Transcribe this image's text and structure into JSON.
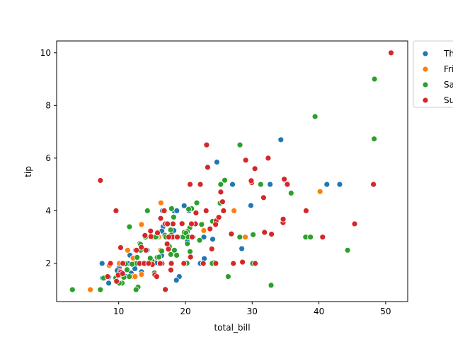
{
  "chart_data": {
    "type": "scatter",
    "title": "",
    "xlabel": "total_bill",
    "ylabel": "tip",
    "xlim": [
      0.7,
      53.3
    ],
    "ylim": [
      0.55,
      10.45
    ],
    "xticks": [
      10,
      20,
      30,
      40,
      50
    ],
    "yticks": [
      2,
      4,
      6,
      8,
      10
    ],
    "grid": false,
    "legend_placement": "outside-right",
    "series": [
      {
        "name": "Thur",
        "color": "#1f77b4",
        "points": [
          [
            27.2,
            4.0
          ],
          [
            22.76,
            3.0
          ],
          [
            17.29,
            2.71
          ],
          [
            19.44,
            3.0
          ],
          [
            16.66,
            3.4
          ],
          [
            10.07,
            1.83
          ],
          [
            32.68,
            5.0
          ],
          [
            15.98,
            2.03
          ],
          [
            34.83,
            5.17
          ],
          [
            13.03,
            2.0
          ],
          [
            18.28,
            4.0
          ],
          [
            24.71,
            5.85
          ],
          [
            21.16,
            3.0
          ],
          [
            28.97,
            3.0
          ],
          [
            22.49,
            3.5
          ],
          [
            5.75,
            1.0
          ],
          [
            16.32,
            4.3
          ],
          [
            22.75,
            3.25
          ],
          [
            40.17,
            4.73
          ],
          [
            27.28,
            4.0
          ],
          [
            12.03,
            1.5
          ],
          [
            21.01,
            3.0
          ],
          [
            12.46,
            1.5
          ],
          [
            11.35,
            2.5
          ],
          [
            15.38,
            3.0
          ],
          [
            44.3,
            2.5
          ],
          [
            22.42,
            3.48
          ],
          [
            20.92,
            4.08
          ],
          [
            15.36,
            1.64
          ],
          [
            20.49,
            4.06
          ],
          [
            25.21,
            4.29
          ],
          [
            18.24,
            3.76
          ],
          [
            14.31,
            4.0
          ],
          [
            14.0,
            3.0
          ],
          [
            7.25,
            1.0
          ],
          [
            38.07,
            4.0
          ],
          [
            23.95,
            2.55
          ],
          [
            25.71,
            4.0
          ],
          [
            17.31,
            3.5
          ],
          [
            29.93,
            5.07
          ],
          [
            10.65,
            1.5
          ],
          [
            12.43,
            1.8
          ],
          [
            24.08,
            2.92
          ],
          [
            11.69,
            2.31
          ],
          [
            13.42,
            1.68
          ],
          [
            14.26,
            2.5
          ],
          [
            15.95,
            2.0
          ],
          [
            12.48,
            2.52
          ],
          [
            29.8,
            4.2
          ],
          [
            8.52,
            1.48
          ],
          [
            14.52,
            2.0
          ],
          [
            11.38,
            2.0
          ],
          [
            22.82,
            2.18
          ],
          [
            19.08,
            1.5
          ],
          [
            20.27,
            2.83
          ],
          [
            11.17,
            1.5
          ],
          [
            12.26,
            2.0
          ],
          [
            18.26,
            3.25
          ],
          [
            8.51,
            1.25
          ],
          [
            10.33,
            2.0
          ],
          [
            14.15,
            2.0
          ],
          [
            16.0,
            2.0
          ],
          [
            13.16,
            2.75
          ],
          [
            17.47,
            3.5
          ],
          [
            34.3,
            6.7
          ],
          [
            41.19,
            5.0
          ],
          [
            27.05,
            5.0
          ],
          [
            16.43,
            2.3
          ],
          [
            8.35,
            1.5
          ],
          [
            18.64,
            1.36
          ],
          [
            11.87,
            1.63
          ],
          [
            9.78,
            1.73
          ],
          [
            7.51,
            2.0
          ],
          [
            19.81,
            4.19
          ],
          [
            28.44,
            2.56
          ],
          [
            15.48,
            2.02
          ],
          [
            16.58,
            4.0
          ],
          [
            7.56,
            1.44
          ],
          [
            10.34,
            2.0
          ],
          [
            43.11,
            5.0
          ],
          [
            13.0,
            2.0
          ],
          [
            13.51,
            2.0
          ],
          [
            18.71,
            4.0
          ],
          [
            12.74,
            2.01
          ],
          [
            13.0,
            2.0
          ],
          [
            16.4,
            2.5
          ],
          [
            20.53,
            4.0
          ],
          [
            16.47,
            3.23
          ],
          [
            18.78,
            3.0
          ],
          [
            12.6,
            1.0
          ],
          [
            15.69,
            1.5
          ],
          [
            10.09,
            2.0
          ],
          [
            11.61,
            3.39
          ],
          [
            21.7,
            4.3
          ],
          [
            24.27,
            2.03
          ],
          [
            22.23,
            2.0
          ],
          [
            32.4,
            6.0
          ],
          [
            28.15,
            3.0
          ],
          [
            11.59,
            1.5
          ],
          [
            7.74,
            1.44
          ],
          [
            30.14,
            3.09
          ],
          [
            12.16,
            2.2
          ],
          [
            13.42,
            3.48
          ],
          [
            8.58,
            1.92
          ]
        ]
      },
      {
        "name": "Fri",
        "color": "#ff7f0e",
        "points": [
          [
            28.97,
            3.0
          ],
          [
            22.49,
            3.5
          ],
          [
            5.75,
            1.0
          ],
          [
            16.32,
            4.3
          ],
          [
            22.75,
            3.25
          ],
          [
            40.17,
            4.73
          ],
          [
            27.28,
            4.0
          ],
          [
            12.03,
            1.5
          ],
          [
            21.01,
            3.0
          ],
          [
            12.46,
            1.5
          ],
          [
            11.35,
            2.5
          ],
          [
            15.38,
            3.0
          ],
          [
            12.16,
            2.2
          ],
          [
            13.42,
            3.48
          ],
          [
            8.58,
            1.92
          ],
          [
            15.98,
            3.0
          ],
          [
            13.42,
            1.58
          ],
          [
            16.27,
            2.5
          ],
          [
            10.09,
            2.0
          ]
        ]
      },
      {
        "name": "Sat",
        "color": "#2ca02c",
        "points": [
          [
            20.65,
            3.35
          ],
          [
            17.92,
            4.08
          ],
          [
            20.29,
            2.75
          ],
          [
            15.77,
            2.23
          ],
          [
            39.42,
            7.58
          ],
          [
            19.82,
            3.18
          ],
          [
            17.81,
            2.34
          ],
          [
            13.37,
            2.0
          ],
          [
            12.69,
            2.0
          ],
          [
            21.7,
            4.3
          ],
          [
            19.65,
            3.0
          ],
          [
            9.55,
            1.45
          ],
          [
            18.35,
            2.5
          ],
          [
            15.06,
            3.0
          ],
          [
            20.69,
            2.45
          ],
          [
            17.78,
            3.27
          ],
          [
            24.06,
            3.6
          ],
          [
            16.31,
            2.0
          ],
          [
            16.93,
            3.07
          ],
          [
            18.69,
            2.31
          ],
          [
            31.27,
            5.0
          ],
          [
            16.04,
            2.24
          ],
          [
            38.01,
            3.0
          ],
          [
            26.41,
            1.5
          ],
          [
            11.24,
            1.76
          ],
          [
            48.27,
            6.73
          ],
          [
            20.29,
            3.21
          ],
          [
            13.81,
            2.0
          ],
          [
            11.02,
            1.98
          ],
          [
            18.29,
            3.76
          ],
          [
            17.59,
            2.64
          ],
          [
            20.08,
            3.15
          ],
          [
            16.45,
            2.47
          ],
          [
            3.07,
            1.0
          ],
          [
            20.23,
            2.01
          ],
          [
            15.01,
            2.09
          ],
          [
            12.02,
            1.97
          ],
          [
            17.07,
            3.0
          ],
          [
            26.86,
            3.14
          ],
          [
            25.28,
            5.0
          ],
          [
            14.73,
            2.2
          ],
          [
            10.51,
            1.25
          ],
          [
            17.92,
            3.08
          ],
          [
            44.3,
            2.5
          ],
          [
            22.42,
            3.48
          ],
          [
            20.92,
            4.08
          ],
          [
            15.36,
            1.64
          ],
          [
            20.49,
            4.06
          ],
          [
            25.21,
            4.29
          ],
          [
            18.24,
            3.76
          ],
          [
            14.31,
            4.0
          ],
          [
            14.0,
            3.0
          ],
          [
            7.25,
            1.0
          ],
          [
            38.73,
            3.0
          ],
          [
            24.27,
            2.03
          ],
          [
            12.76,
            2.23
          ],
          [
            30.06,
            2.0
          ],
          [
            25.89,
            5.16
          ],
          [
            48.33,
            9.0
          ],
          [
            13.27,
            2.5
          ],
          [
            28.17,
            6.5
          ],
          [
            12.9,
            1.1
          ],
          [
            28.15,
            3.0
          ],
          [
            11.59,
            1.5
          ],
          [
            7.74,
            1.44
          ],
          [
            30.14,
            3.09
          ],
          [
            20.45,
            3.0
          ],
          [
            13.28,
            2.72
          ],
          [
            22.12,
            2.88
          ],
          [
            24.01,
            2.0
          ],
          [
            15.69,
            3.0
          ],
          [
            11.61,
            3.39
          ],
          [
            10.77,
            1.47
          ],
          [
            15.53,
            3.0
          ],
          [
            10.07,
            1.25
          ],
          [
            12.6,
            1.0
          ],
          [
            32.83,
            1.17
          ],
          [
            35.83,
            4.67
          ],
          [
            29.03,
            5.92
          ],
          [
            27.18,
            2.0
          ],
          [
            22.67,
            2.0
          ],
          [
            17.82,
            1.75
          ],
          [
            18.78,
            3.0
          ],
          [
            50.81,
            10.0
          ],
          [
            20.76,
            2.24
          ],
          [
            16.97,
            3.5
          ]
        ]
      },
      {
        "name": "Sun",
        "color": "#d62728",
        "points": [
          [
            16.99,
            1.01
          ],
          [
            10.34,
            1.66
          ],
          [
            21.01,
            3.5
          ],
          [
            23.68,
            3.31
          ],
          [
            24.59,
            3.61
          ],
          [
            25.29,
            4.71
          ],
          [
            8.77,
            2.0
          ],
          [
            26.88,
            3.12
          ],
          [
            15.04,
            1.96
          ],
          [
            14.78,
            3.23
          ],
          [
            10.27,
            1.71
          ],
          [
            35.26,
            5.0
          ],
          [
            15.42,
            1.57
          ],
          [
            18.43,
            3.0
          ],
          [
            14.83,
            3.02
          ],
          [
            21.58,
            3.92
          ],
          [
            10.33,
            1.67
          ],
          [
            16.29,
            3.71
          ],
          [
            16.97,
            3.5
          ],
          [
            17.46,
            2.54
          ],
          [
            13.94,
            3.06
          ],
          [
            9.68,
            1.32
          ],
          [
            30.4,
            5.6
          ],
          [
            18.29,
            3.0
          ],
          [
            22.23,
            5.0
          ],
          [
            32.4,
            6.0
          ],
          [
            28.55,
            2.05
          ],
          [
            18.04,
            3.0
          ],
          [
            12.54,
            2.5
          ],
          [
            10.29,
            2.6
          ],
          [
            34.81,
            5.2
          ],
          [
            9.94,
            1.56
          ],
          [
            25.56,
            4.34
          ],
          [
            19.49,
            3.51
          ],
          [
            38.07,
            4.0
          ],
          [
            23.95,
            2.55
          ],
          [
            25.71,
            4.0
          ],
          [
            17.31,
            3.5
          ],
          [
            29.93,
            5.07
          ],
          [
            14.07,
            2.5
          ],
          [
            13.13,
            2.0
          ],
          [
            17.26,
            2.74
          ],
          [
            24.55,
            2.0
          ],
          [
            19.77,
            2.0
          ],
          [
            29.85,
            5.14
          ],
          [
            48.17,
            5.0
          ],
          [
            25.0,
            3.75
          ],
          [
            13.39,
            2.61
          ],
          [
            16.49,
            2.0
          ],
          [
            21.5,
            3.5
          ],
          [
            12.66,
            2.5
          ],
          [
            16.21,
            2.0
          ],
          [
            13.81,
            2.0
          ],
          [
            17.51,
            3.0
          ],
          [
            24.52,
            3.48
          ],
          [
            20.76,
            2.24
          ],
          [
            31.71,
            4.5
          ],
          [
            10.59,
            1.61
          ],
          [
            10.63,
            2.0
          ],
          [
            50.81,
            10.0
          ],
          [
            15.81,
            3.16
          ],
          [
            7.25,
            5.15
          ],
          [
            31.85,
            3.18
          ],
          [
            16.82,
            4.0
          ],
          [
            32.9,
            3.11
          ],
          [
            17.89,
            2.0
          ],
          [
            14.48,
            2.0
          ],
          [
            34.63,
            3.55
          ],
          [
            34.65,
            3.68
          ],
          [
            23.33,
            5.65
          ],
          [
            45.35,
            3.5
          ],
          [
            23.17,
            6.5
          ],
          [
            40.55,
            3.0
          ],
          [
            20.69,
            5.0
          ],
          [
            20.9,
            3.5
          ],
          [
            30.46,
            2.0
          ],
          [
            18.15,
            3.5
          ],
          [
            23.1,
            4.0
          ],
          [
            15.69,
            1.5
          ],
          [
            9.6,
            4.0
          ],
          [
            29.03,
            5.92
          ],
          [
            27.18,
            2.0
          ],
          [
            22.67,
            2.0
          ],
          [
            17.82,
            1.75
          ],
          [
            18.78,
            3.0
          ],
          [
            21.0,
            3.0
          ],
          [
            8.35,
            1.5
          ]
        ]
      }
    ]
  }
}
